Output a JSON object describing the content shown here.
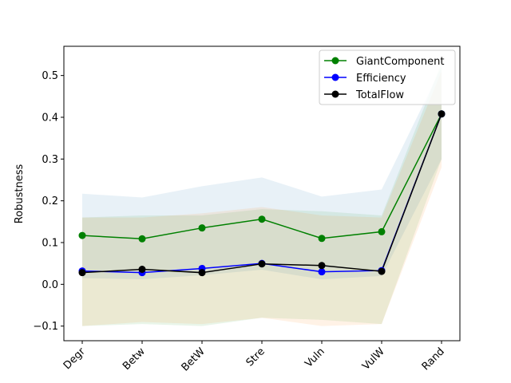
{
  "chart_data": {
    "type": "line",
    "title": "",
    "xlabel": "",
    "ylabel": "Robustness",
    "categories": [
      "Degr",
      "Betw",
      "BetW",
      "Stre",
      "Vuln",
      "VulW",
      "Rand"
    ],
    "ylim": [
      -0.135,
      0.57
    ],
    "yticks": [
      -0.1,
      0.0,
      0.1,
      0.2,
      0.3,
      0.4,
      0.5
    ],
    "ytick_labels": [
      "−0.1",
      "0.0",
      "0.1",
      "0.2",
      "0.3",
      "0.4",
      "0.5"
    ],
    "grid": false,
    "legend": "top-right",
    "series": [
      {
        "name": "GiantComponent",
        "color": "#008000",
        "values": [
          0.117,
          0.109,
          0.135,
          0.156,
          0.11,
          0.126,
          0.408
        ],
        "band_upper": [
          0.16,
          0.165,
          0.165,
          0.18,
          0.175,
          0.165,
          0.53
        ],
        "band_lower": [
          -0.1,
          -0.095,
          -0.1,
          -0.08,
          -0.085,
          -0.095,
          0.3
        ],
        "band_color": "#2ca02c"
      },
      {
        "name": "Efficiency",
        "color": "#0000ff",
        "values": [
          0.032,
          0.028,
          0.038,
          0.05,
          0.03,
          0.033,
          0.408
        ],
        "band_upper": [
          0.217,
          0.208,
          0.235,
          0.256,
          0.21,
          0.227,
          0.52
        ],
        "band_lower": [
          0.015,
          0.012,
          0.022,
          0.035,
          0.012,
          0.02,
          0.3
        ],
        "band_color": "#1f77b4"
      },
      {
        "name": "TotalFlow",
        "color": "#000000",
        "values": [
          0.028,
          0.036,
          0.028,
          0.049,
          0.045,
          0.031,
          0.408
        ],
        "band_upper": [
          0.16,
          0.16,
          0.17,
          0.185,
          0.165,
          0.16,
          0.51
        ],
        "band_lower": [
          -0.1,
          -0.09,
          -0.095,
          -0.08,
          -0.1,
          -0.095,
          0.28
        ],
        "band_color": "#ff7f0e"
      }
    ]
  }
}
